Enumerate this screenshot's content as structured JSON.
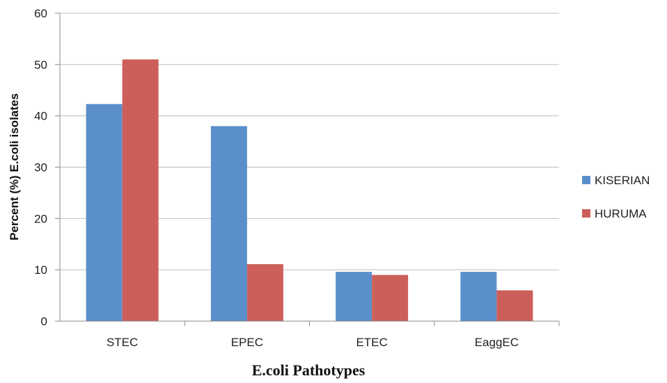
{
  "chart_data": {
    "type": "bar",
    "title": "",
    "xlabel": "E.coli Pathotypes",
    "ylabel": "Percent (%) E.coli isolates",
    "categories": [
      "STEC",
      "EPEC",
      "ETEC",
      "EaggEC"
    ],
    "ylim": [
      0,
      60
    ],
    "yticks": [
      0,
      10,
      20,
      30,
      40,
      50,
      60
    ],
    "grid": true,
    "legend_position": "right",
    "series": [
      {
        "name": "KISERIAN",
        "color": "#5b8fcc",
        "values": [
          42.3,
          38,
          9.6,
          9.6
        ]
      },
      {
        "name": "HURUMA",
        "color": "#cd5f59",
        "values": [
          51,
          11.1,
          9,
          6
        ]
      }
    ]
  }
}
